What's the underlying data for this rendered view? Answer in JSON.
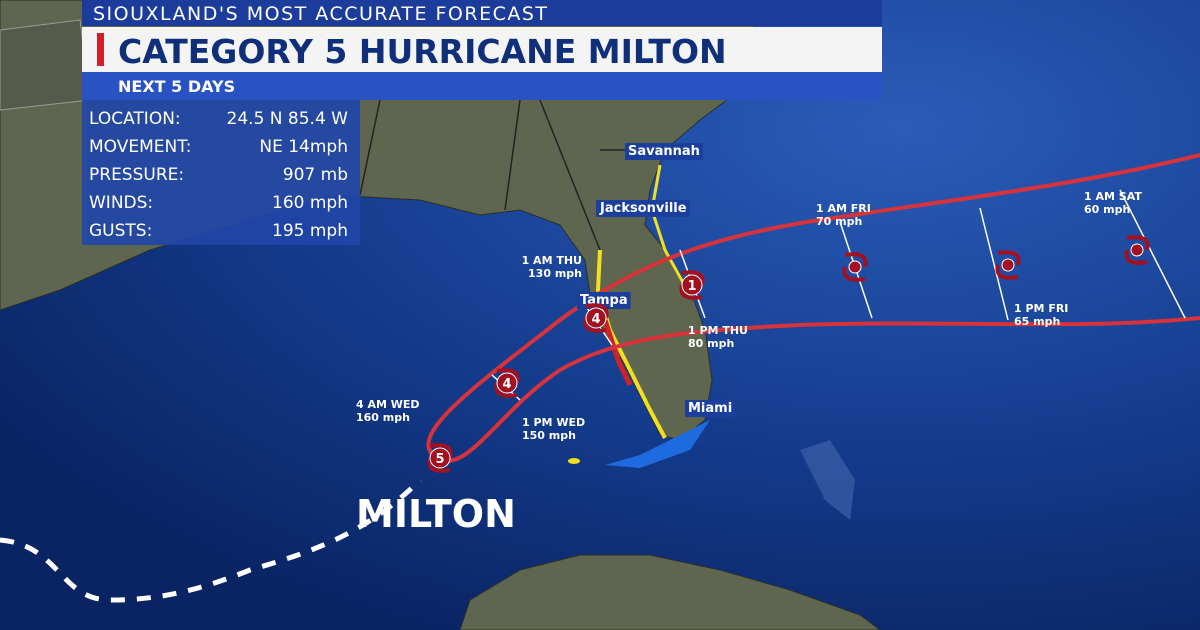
{
  "header": {
    "top": "SIOUXLAND'S MOST ACCURATE FORECAST",
    "title": "CATEGORY 5 HURRICANE MILTON",
    "subtitle": "NEXT 5 DAYS"
  },
  "info": {
    "rows": [
      {
        "label": "LOCATION:",
        "value": "24.5 N 85.4 W"
      },
      {
        "label": "MOVEMENT:",
        "value": "NE 14mph"
      },
      {
        "label": "PRESSURE:",
        "value": "907 mb"
      },
      {
        "label": "WINDS:",
        "value": "160 mph"
      },
      {
        "label": "GUSTS:",
        "value": "195 mph"
      }
    ]
  },
  "cities": [
    "Savannah",
    "Jacksonville",
    "Tampa",
    "Miami"
  ],
  "forecast": [
    {
      "time": "4 AM WED",
      "wind": "160 mph"
    },
    {
      "time": "1 PM WED",
      "wind": "150 mph"
    },
    {
      "time": "1 AM THU",
      "wind": "130 mph"
    },
    {
      "time": "1 PM THU",
      "wind": "80 mph"
    },
    {
      "time": "1 AM FRI",
      "wind": "70 mph"
    },
    {
      "time": "1 PM FRI",
      "wind": "65 mph"
    },
    {
      "time": "1 AM SAT",
      "wind": "60 mph"
    }
  ],
  "storm_icons": [
    "5",
    "4",
    "4",
    "1"
  ],
  "storm_name": "MILTON"
}
